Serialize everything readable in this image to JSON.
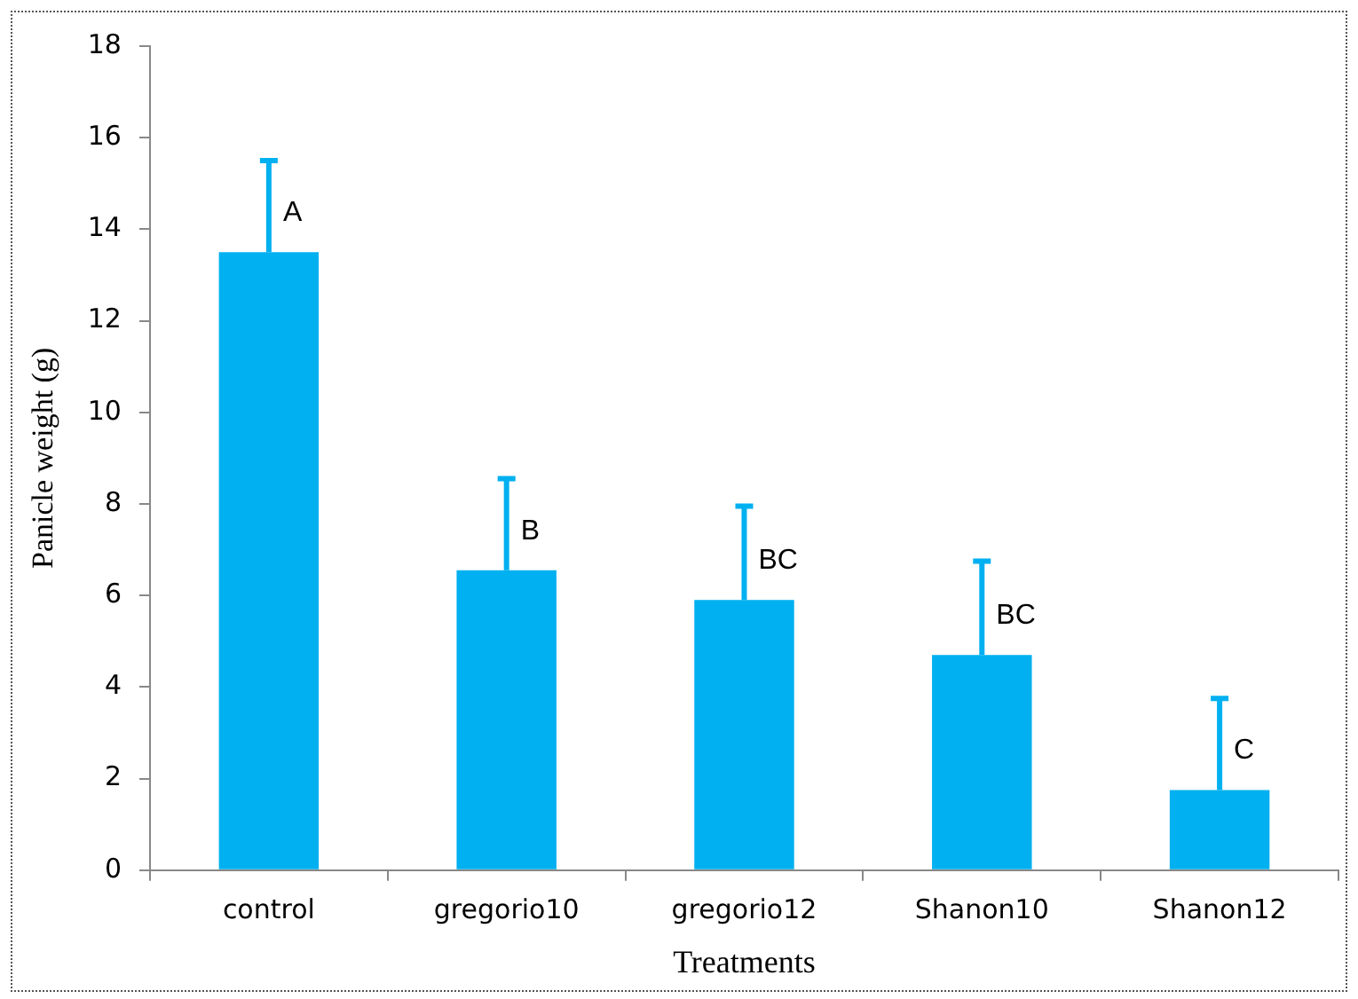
{
  "chart_data": {
    "type": "bar",
    "xlabel": "Treatments",
    "ylabel": "Panicle weight (g)",
    "categories": [
      "control",
      "gregorio10",
      "gregorio12",
      "Shanon10",
      "Shanon12"
    ],
    "values": [
      13.5,
      6.55,
      5.9,
      4.7,
      1.75
    ],
    "errors": [
      [
        13.5,
        15.5
      ],
      [
        6.55,
        8.55
      ],
      [
        5.9,
        7.95
      ],
      [
        4.7,
        6.75
      ],
      [
        1.75,
        3.75
      ]
    ],
    "color": "#00b0f0",
    "ylim": [
      0,
      18
    ],
    "yticks": [
      0,
      2,
      4,
      6,
      8,
      10,
      12,
      14,
      16,
      18
    ],
    "grid": false,
    "legend": false,
    "annotations": [
      {
        "text": "A",
        "x": "control",
        "y": 13.5
      },
      {
        "text": "B",
        "x": "gregorio10",
        "y": 6.55
      },
      {
        "text": "BC",
        "x": "gregorio12",
        "y": 5.9
      },
      {
        "text": "BC",
        "x": "Shanon10",
        "y": 4.7
      },
      {
        "text": "C",
        "x": "Shanon12",
        "y": 1.75
      }
    ]
  }
}
